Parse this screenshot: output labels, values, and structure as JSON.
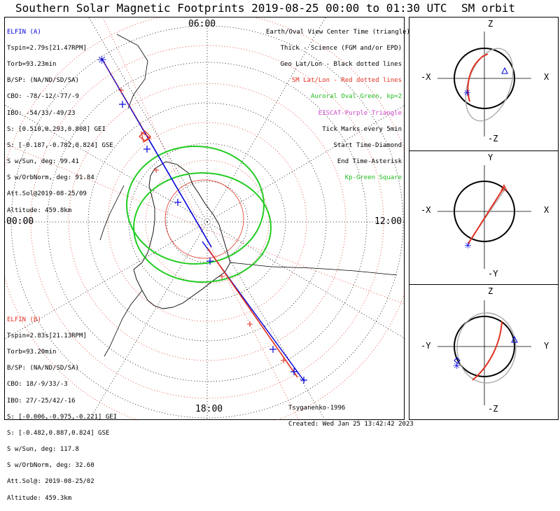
{
  "title": "Southern Solar Magnetic Footprints 2019-08-25 00:00 to 01:30 UTC",
  "orbit_title": "SM orbit",
  "map": {
    "time_labels": {
      "top": "06:00",
      "left": "00:00",
      "right": "12:00",
      "bottom": "18:00"
    },
    "colors": {
      "sat_a": "#0000dd",
      "sat_b": "#e03020",
      "oval": "#22cc22",
      "geo": "#000000",
      "sm_grid": "#e03020"
    }
  },
  "elfin_a": {
    "name": "ELFIN (A)",
    "lines": [
      "Tspin=2.79s[21.47RPM]",
      "Torb=93.23min",
      "B/SP: (NA/ND/SD/SA)",
      "CBO: -78/-12/-77/-9",
      "IBO: -54/33/-49/23",
      "S: [0.510,0.293,0.808] GEI",
      "S: [-0.187,-0.782,0.824] GSE",
      "S w/Sun, deg: 99.41",
      "S w/OrbNorm, deg: 91.84",
      "Att.Sol@2019-08-25/09",
      "Altitude: 459.8km"
    ]
  },
  "elfin_b": {
    "name": "ELFIN (B)",
    "lines": [
      "Tspin=2.83s[21.13RPM]",
      "Torb=93.20min",
      "B/SP: (NA/ND/SD/SA)",
      "CBO: 18/-9/33/-3",
      "IBO: 27/-25/42/-16",
      "S: [-0.006,-0.975,-0.221] GEI",
      "S: [-0.482,0.887,0.824] GSE",
      "S w/Sun, deg: 117.8",
      "S w/OrbNorm, deg: 32.60",
      "Att.Sol@: 2019-08-25/02",
      "Altitude: 459.3km"
    ]
  },
  "legend": {
    "l1": "Earth/Oval View Center Time (triangle)",
    "l2": "Thick - Science (FGM and/or EPD)",
    "l3": "Geo Lat/Lon - Black dotted lines",
    "l4": "SM Lat/Lon - Red dotted lines",
    "l5": "Auroral Oval-Green, kp=2",
    "l6": "EISCAT-Purple Triangle",
    "l7": "Tick Marks every 5min",
    "l8": "Start Time-Diamond",
    "l9": "End Time-Asterisk",
    "l10": "Kp-Green Square"
  },
  "credits": {
    "model": "Tsyganenko-1996",
    "created": "Created: Wed Jan 25 13:42:42 2023"
  },
  "sm_orbit": {
    "panels": [
      {
        "top": "Z",
        "bottom": "-Z",
        "left": "-X",
        "right": "X"
      },
      {
        "top": "Y",
        "bottom": "-Y",
        "left": "-X",
        "right": "X"
      },
      {
        "top": "Z",
        "bottom": "-Z",
        "left": "-Y",
        "right": "Y"
      }
    ]
  }
}
